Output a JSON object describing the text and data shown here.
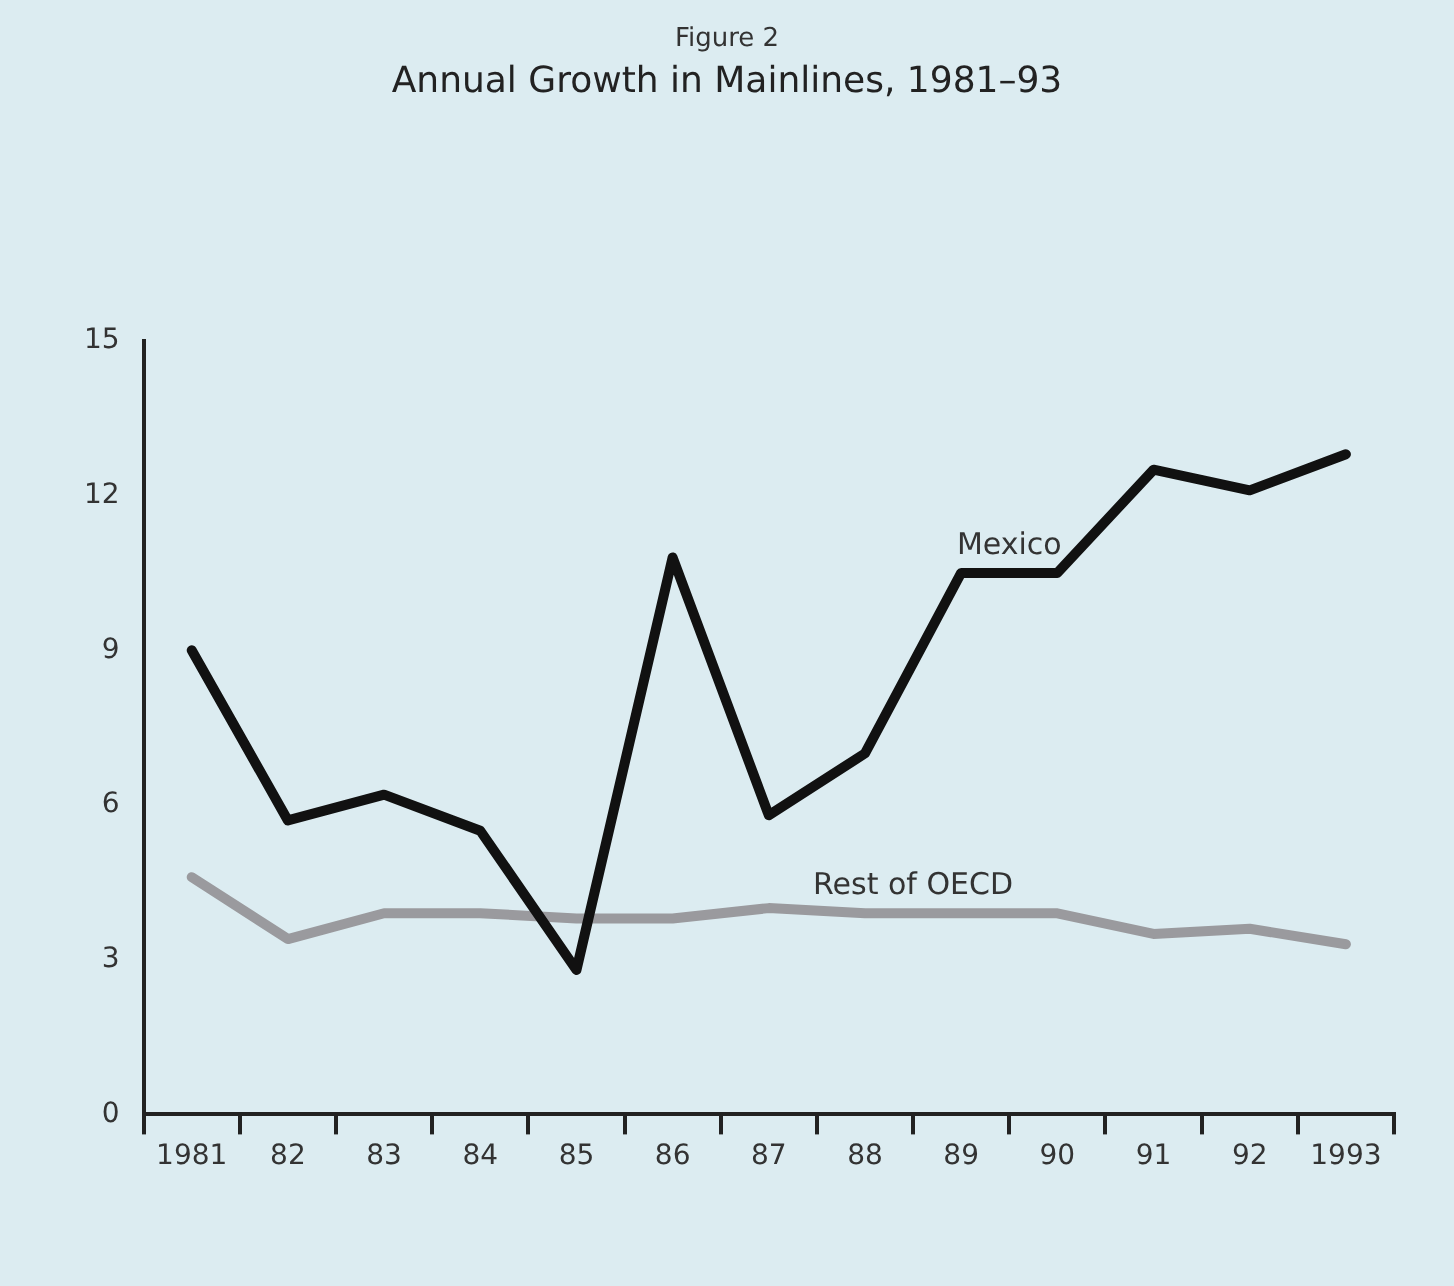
{
  "chart_data": {
    "type": "line",
    "subtitle": "Figure 2",
    "title": "Annual Growth in Mainlines, 1981–93",
    "categories": [
      "1981",
      "82",
      "83",
      "84",
      "85",
      "86",
      "87",
      "88",
      "89",
      "90",
      "91",
      "92",
      "1993"
    ],
    "series": [
      {
        "name": "Mexico",
        "color": "#111111",
        "values": [
          9.0,
          5.7,
          6.2,
          5.5,
          2.8,
          10.8,
          5.8,
          7.0,
          10.5,
          10.5,
          12.5,
          12.1,
          12.8
        ]
      },
      {
        "name": "Rest of OECD",
        "color": "#9a9a9e",
        "values": [
          4.6,
          3.4,
          3.9,
          3.9,
          3.8,
          3.8,
          4.0,
          3.9,
          3.9,
          3.9,
          3.5,
          3.6,
          3.3
        ]
      }
    ],
    "ylim": [
      0,
      15
    ],
    "yticks": [
      0,
      3,
      6,
      9,
      12,
      15
    ],
    "grid": false,
    "legend": false,
    "marker": "none",
    "line_style": "solid"
  }
}
